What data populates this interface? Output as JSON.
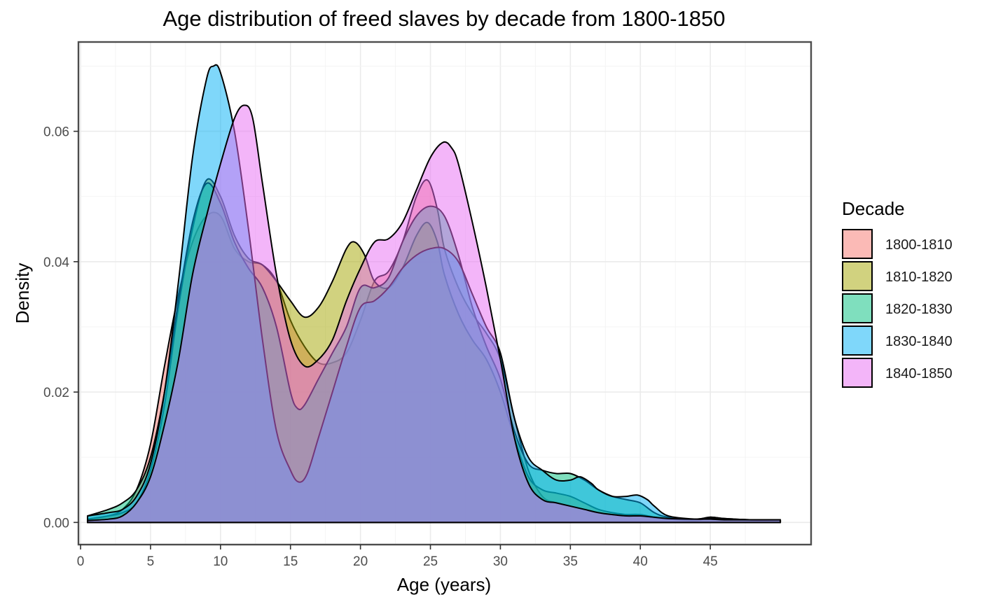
{
  "chart_data": {
    "type": "area",
    "title": "Age distribution of freed slaves by decade from 1800-1850",
    "xlabel": "Age (years)",
    "ylabel": "Density",
    "xlim": [
      -0.15,
      52.2
    ],
    "ylim": [
      -0.0034,
      0.0737
    ],
    "x_ticks": [
      0,
      5,
      10,
      15,
      20,
      25,
      30,
      35,
      40,
      45
    ],
    "y_ticks": [
      0.0,
      0.02,
      0.04,
      0.06
    ],
    "y_tick_labels": [
      "0.00",
      "0.02",
      "0.04",
      "0.06"
    ],
    "grid": true,
    "legend_title": "Decade",
    "legend_position": "right",
    "fill_opacity": 0.5,
    "series": [
      {
        "name": "1800-1810",
        "color": "#F8766D",
        "points": [
          [
            0.5,
            0.0005
          ],
          [
            2,
            0.001
          ],
          [
            3,
            0.002
          ],
          [
            4,
            0.005
          ],
          [
            5,
            0.012
          ],
          [
            6,
            0.024
          ],
          [
            7,
            0.035
          ],
          [
            8,
            0.043
          ],
          [
            9,
            0.047
          ],
          [
            10,
            0.047
          ],
          [
            11,
            0.042
          ],
          [
            12,
            0.04
          ],
          [
            13,
            0.0395
          ],
          [
            14,
            0.037
          ],
          [
            15,
            0.031
          ],
          [
            16,
            0.027
          ],
          [
            17,
            0.0245
          ],
          [
            18,
            0.0245
          ],
          [
            19,
            0.026
          ],
          [
            20,
            0.031
          ],
          [
            21,
            0.037
          ],
          [
            22,
            0.0385
          ],
          [
            23,
            0.043
          ],
          [
            24,
            0.05
          ],
          [
            24.8,
            0.0525
          ],
          [
            25.5,
            0.048
          ],
          [
            26,
            0.042
          ],
          [
            27,
            0.036
          ],
          [
            28,
            0.032
          ],
          [
            29,
            0.029
          ],
          [
            30,
            0.025
          ],
          [
            31,
            0.016
          ],
          [
            32,
            0.008
          ],
          [
            33,
            0.004
          ],
          [
            34,
            0.003
          ],
          [
            35,
            0.0025
          ],
          [
            36,
            0.002
          ],
          [
            37,
            0.0015
          ],
          [
            38,
            0.0012
          ],
          [
            39,
            0.0012
          ],
          [
            40,
            0.0012
          ],
          [
            41,
            0.0008
          ],
          [
            42,
            0.0005
          ],
          [
            44,
            0.0003
          ],
          [
            45,
            0.0008
          ],
          [
            46,
            0.0005
          ],
          [
            48,
            0.0003
          ],
          [
            50,
            0.0003
          ]
        ]
      },
      {
        "name": "1810-1820",
        "color": "#A3A500",
        "points": [
          [
            0.5,
            0.0005
          ],
          [
            2,
            0.001
          ],
          [
            3,
            0.0015
          ],
          [
            4,
            0.003
          ],
          [
            5,
            0.008
          ],
          [
            6,
            0.018
          ],
          [
            7,
            0.033
          ],
          [
            8,
            0.045
          ],
          [
            9,
            0.0525
          ],
          [
            10,
            0.05
          ],
          [
            11,
            0.044
          ],
          [
            12,
            0.0405
          ],
          [
            13,
            0.0395
          ],
          [
            14,
            0.037
          ],
          [
            15,
            0.034
          ],
          [
            16,
            0.0315
          ],
          [
            17,
            0.033
          ],
          [
            18,
            0.037
          ],
          [
            19,
            0.042
          ],
          [
            19.6,
            0.043
          ],
          [
            20.3,
            0.041
          ],
          [
            21,
            0.037
          ],
          [
            22,
            0.036
          ],
          [
            23,
            0.039
          ],
          [
            24,
            0.044
          ],
          [
            24.8,
            0.046
          ],
          [
            25.5,
            0.043
          ],
          [
            26,
            0.038
          ],
          [
            27,
            0.032
          ],
          [
            28,
            0.028
          ],
          [
            29,
            0.025
          ],
          [
            30,
            0.02
          ],
          [
            31,
            0.013
          ],
          [
            32,
            0.007
          ],
          [
            33,
            0.005
          ],
          [
            34,
            0.0045
          ],
          [
            35,
            0.004
          ],
          [
            36,
            0.003
          ],
          [
            37,
            0.002
          ],
          [
            38,
            0.0015
          ],
          [
            39,
            0.0012
          ],
          [
            40,
            0.001
          ],
          [
            41,
            0.0007
          ],
          [
            42,
            0.0005
          ],
          [
            44,
            0.0005
          ],
          [
            45,
            0.0008
          ],
          [
            46,
            0.0006
          ],
          [
            48,
            0.0004
          ],
          [
            50,
            0.0004
          ]
        ]
      },
      {
        "name": "1820-1830",
        "color": "#00BF7D",
        "points": [
          [
            0.5,
            0.001
          ],
          [
            2,
            0.002
          ],
          [
            3,
            0.003
          ],
          [
            4,
            0.005
          ],
          [
            5,
            0.01
          ],
          [
            6,
            0.02
          ],
          [
            7,
            0.034
          ],
          [
            8,
            0.046
          ],
          [
            9,
            0.052
          ],
          [
            10,
            0.049
          ],
          [
            11,
            0.043
          ],
          [
            12,
            0.039
          ],
          [
            13,
            0.036
          ],
          [
            14,
            0.03
          ],
          [
            15,
            0.02
          ],
          [
            15.5,
            0.0175
          ],
          [
            16,
            0.018
          ],
          [
            17,
            0.022
          ],
          [
            18,
            0.026
          ],
          [
            19,
            0.03
          ],
          [
            20,
            0.036
          ],
          [
            21,
            0.036
          ],
          [
            22,
            0.0375
          ],
          [
            23,
            0.043
          ],
          [
            24,
            0.047
          ],
          [
            25,
            0.0485
          ],
          [
            26,
            0.047
          ],
          [
            27,
            0.041
          ],
          [
            28,
            0.033
          ],
          [
            29,
            0.027
          ],
          [
            30,
            0.022
          ],
          [
            31,
            0.014
          ],
          [
            32,
            0.009
          ],
          [
            33,
            0.008
          ],
          [
            34,
            0.0075
          ],
          [
            35,
            0.0075
          ],
          [
            36,
            0.0065
          ],
          [
            37,
            0.005
          ],
          [
            38,
            0.004
          ],
          [
            39,
            0.0035
          ],
          [
            40,
            0.003
          ],
          [
            41,
            0.0015
          ],
          [
            42,
            0.0008
          ],
          [
            44,
            0.0005
          ],
          [
            45,
            0.0008
          ],
          [
            46,
            0.0006
          ],
          [
            48,
            0.0004
          ],
          [
            50,
            0.0004
          ]
        ]
      },
      {
        "name": "1830-1840",
        "color": "#00B0F6",
        "points": [
          [
            0.5,
            0.001
          ],
          [
            2,
            0.0015
          ],
          [
            3,
            0.002
          ],
          [
            4,
            0.004
          ],
          [
            5,
            0.009
          ],
          [
            6,
            0.02
          ],
          [
            7,
            0.037
          ],
          [
            8,
            0.056
          ],
          [
            9,
            0.068
          ],
          [
            9.5,
            0.07
          ],
          [
            10,
            0.069
          ],
          [
            11,
            0.06
          ],
          [
            12,
            0.045
          ],
          [
            13,
            0.028
          ],
          [
            14,
            0.014
          ],
          [
            15,
            0.008
          ],
          [
            15.6,
            0.0062
          ],
          [
            16.2,
            0.0075
          ],
          [
            17,
            0.013
          ],
          [
            18,
            0.02
          ],
          [
            19,
            0.027
          ],
          [
            20,
            0.033
          ],
          [
            21,
            0.034
          ],
          [
            22,
            0.036
          ],
          [
            23,
            0.039
          ],
          [
            24,
            0.041
          ],
          [
            25,
            0.042
          ],
          [
            26,
            0.042
          ],
          [
            27,
            0.04
          ],
          [
            28,
            0.035
          ],
          [
            29,
            0.03
          ],
          [
            30,
            0.026
          ],
          [
            31,
            0.016
          ],
          [
            32,
            0.01
          ],
          [
            33,
            0.008
          ],
          [
            34,
            0.0065
          ],
          [
            35,
            0.0065
          ],
          [
            35.7,
            0.007
          ],
          [
            36.5,
            0.006
          ],
          [
            37,
            0.005
          ],
          [
            38,
            0.004
          ],
          [
            39,
            0.004
          ],
          [
            39.8,
            0.0042
          ],
          [
            40.5,
            0.0035
          ],
          [
            41,
            0.0025
          ],
          [
            42,
            0.001
          ],
          [
            44,
            0.0005
          ],
          [
            45,
            0.0006
          ],
          [
            46,
            0.0005
          ],
          [
            48,
            0.0004
          ],
          [
            50,
            0.0004
          ]
        ]
      },
      {
        "name": "1840-1850",
        "color": "#E76BF3",
        "points": [
          [
            0.5,
            0.0003
          ],
          [
            2,
            0.0005
          ],
          [
            3,
            0.001
          ],
          [
            4,
            0.003
          ],
          [
            5,
            0.007
          ],
          [
            6,
            0.015
          ],
          [
            7,
            0.025
          ],
          [
            8,
            0.038
          ],
          [
            9,
            0.047
          ],
          [
            10,
            0.055
          ],
          [
            11,
            0.062
          ],
          [
            11.7,
            0.064
          ],
          [
            12.3,
            0.062
          ],
          [
            13,
            0.052
          ],
          [
            14,
            0.038
          ],
          [
            15,
            0.028
          ],
          [
            16,
            0.024
          ],
          [
            17,
            0.025
          ],
          [
            18,
            0.028
          ],
          [
            19,
            0.034
          ],
          [
            20,
            0.039
          ],
          [
            21,
            0.043
          ],
          [
            22,
            0.0435
          ],
          [
            23,
            0.046
          ],
          [
            24,
            0.051
          ],
          [
            25,
            0.056
          ],
          [
            25.9,
            0.0583
          ],
          [
            26.5,
            0.0575
          ],
          [
            27,
            0.055
          ],
          [
            28,
            0.046
          ],
          [
            29,
            0.036
          ],
          [
            30,
            0.025
          ],
          [
            31,
            0.013
          ],
          [
            32,
            0.006
          ],
          [
            33,
            0.0035
          ],
          [
            34,
            0.003
          ],
          [
            35,
            0.0025
          ],
          [
            36,
            0.002
          ],
          [
            37,
            0.0015
          ],
          [
            38,
            0.0012
          ],
          [
            39,
            0.001
          ],
          [
            40,
            0.001
          ],
          [
            41,
            0.0008
          ],
          [
            42,
            0.0006
          ],
          [
            44,
            0.0005
          ],
          [
            45,
            0.0005
          ],
          [
            46,
            0.0004
          ],
          [
            48,
            0.0004
          ],
          [
            50,
            0.0004
          ]
        ]
      }
    ]
  }
}
